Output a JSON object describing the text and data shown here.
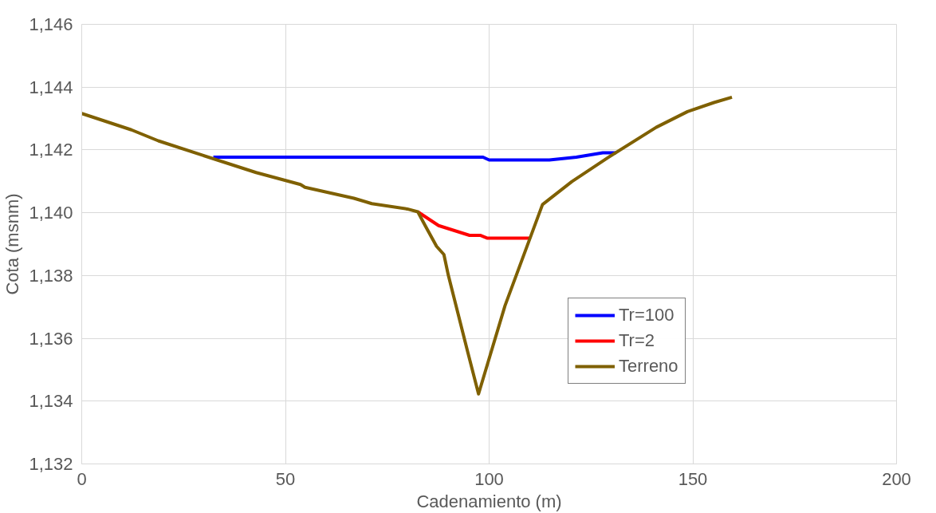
{
  "chart_data": {
    "type": "line",
    "xlabel": "Cadenamiento (m)",
    "ylabel": "Cota (msnm)",
    "xlim": [
      0,
      200
    ],
    "xticks": [
      0,
      50,
      100,
      150,
      200
    ],
    "ylim": [
      1132,
      1146
    ],
    "yticks": [
      {
        "value": 1132,
        "label": "1,132"
      },
      {
        "value": 1134,
        "label": "1,134"
      },
      {
        "value": 1136,
        "label": "1,136"
      },
      {
        "value": 1138,
        "label": "1,138"
      },
      {
        "value": 1140,
        "label": "1,140"
      },
      {
        "value": 1142,
        "label": "1,142"
      },
      {
        "value": 1144,
        "label": "1,144"
      },
      {
        "value": 1146,
        "label": "1,146"
      }
    ],
    "grid": true,
    "legend": "right",
    "marker": "none",
    "line_style": "solid",
    "series": [
      {
        "name": "Tr=100",
        "color": "#0000ff",
        "x": [
          32.3,
          98.5,
          100,
          114.8,
          121.4,
          127.9,
          131.2
        ],
        "values": [
          1141.77,
          1141.77,
          1141.68,
          1141.68,
          1141.77,
          1141.91,
          1141.91
        ]
      },
      {
        "name": "Tr=2",
        "color": "#ff0000",
        "x": [
          82.5,
          87.6,
          95.2,
          97.8,
          99.6,
          110
        ],
        "values": [
          1140.03,
          1139.59,
          1139.28,
          1139.28,
          1139.19,
          1139.19
        ]
      },
      {
        "name": "Terreno",
        "color": "#7f6000",
        "x": [
          0,
          12.2,
          18.8,
          29.7,
          42.8,
          53.7,
          54.8,
          66.8,
          71.2,
          79.9,
          82.5,
          84.3,
          87.1,
          88.9,
          90.0,
          94.8,
          97.4,
          103.9,
          113.1,
          120.3,
          129.0,
          141.0,
          148.7,
          155.2,
          159.6
        ],
        "values": [
          1143.16,
          1142.64,
          1142.29,
          1141.83,
          1141.28,
          1140.9,
          1140.81,
          1140.46,
          1140.29,
          1140.12,
          1140.03,
          1139.59,
          1138.93,
          1138.67,
          1138.0,
          1135.54,
          1134.23,
          1137.04,
          1140.26,
          1140.99,
          1141.74,
          1142.72,
          1143.22,
          1143.51,
          1143.68
        ]
      }
    ]
  }
}
